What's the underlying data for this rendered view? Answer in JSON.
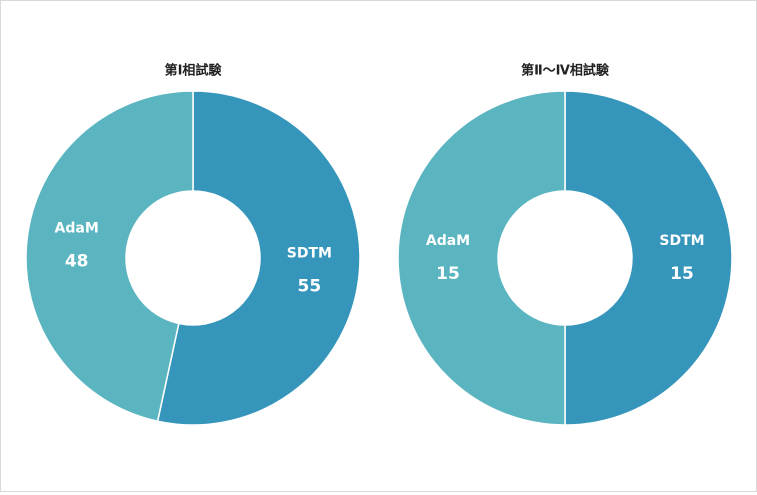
{
  "chart_data": [
    {
      "type": "pie",
      "title": "第Ⅰ相試験",
      "categories": [
        "SDTM",
        "AdaM"
      ],
      "values": [
        55,
        48
      ],
      "colors": [
        "#3595bb",
        "#5ab5c0"
      ],
      "donut": true
    },
    {
      "type": "pie",
      "title": "第Ⅱ～Ⅳ相試験",
      "categories": [
        "SDTM",
        "AdaM"
      ],
      "values": [
        15,
        15
      ],
      "colors": [
        "#3595bb",
        "#5ab5c0"
      ],
      "donut": true
    }
  ]
}
